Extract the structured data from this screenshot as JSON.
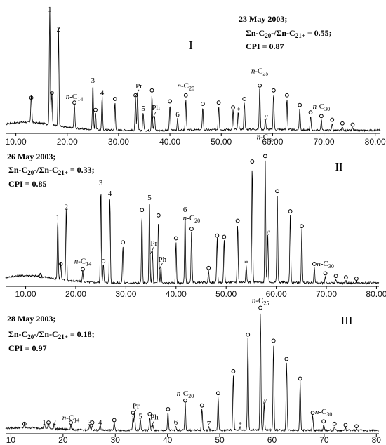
{
  "chart_data": [
    {
      "type": "line",
      "panel_label": "I",
      "date": "23 May 2003;",
      "ratio_prefix": "Σn-C",
      "ratio_sub1": "20",
      "ratio_mid": "-/Σn-C",
      "ratio_sub2": "21+",
      "ratio_value": " = 0.55;",
      "cpi": "CPI = 0.87",
      "xlim": [
        8,
        81
      ],
      "xticks": [
        10,
        20,
        30,
        40,
        50,
        60,
        70,
        80
      ],
      "xtick_labels": [
        "10.00",
        "20.00",
        "30.00",
        "40.00",
        "50.00",
        "60.00",
        "70.00",
        "80.00"
      ],
      "ymax": 100,
      "baseline_drift": 6,
      "peaks": [
        {
          "x": 13.0,
          "h": 24,
          "m": "o"
        },
        {
          "x": 16.6,
          "h": 96,
          "lbl": "1"
        },
        {
          "x": 17.0,
          "h": 28,
          "m": "o"
        },
        {
          "x": 18.3,
          "h": 80,
          "lbl": "2"
        },
        {
          "x": 21.4,
          "h": 20,
          "m": "o"
        },
        {
          "x": 25.0,
          "h": 38,
          "lbl": "3"
        },
        {
          "x": 25.5,
          "h": 14,
          "m": "o"
        },
        {
          "x": 26.8,
          "h": 28,
          "lbl": "4"
        },
        {
          "x": 29.3,
          "h": 23,
          "m": "o"
        },
        {
          "x": 33.3,
          "h": 26,
          "m": "o"
        },
        {
          "x": 33.7,
          "h": 30,
          "lbl": "Pr"
        },
        {
          "x": 34.8,
          "h": 15,
          "lbl": "5"
        },
        {
          "x": 36.5,
          "h": 30,
          "m": "o"
        },
        {
          "x": 37.0,
          "h": 12,
          "lbl": "Ph"
        },
        {
          "x": 40.0,
          "h": 21,
          "m": "o"
        },
        {
          "x": 41.5,
          "h": 10,
          "lbl": "6"
        },
        {
          "x": 43.1,
          "h": 26,
          "m": "o"
        },
        {
          "x": 46.4,
          "h": 19,
          "m": "o"
        },
        {
          "x": 49.5,
          "h": 20,
          "m": "o"
        },
        {
          "x": 52.3,
          "h": 16,
          "m": "o"
        },
        {
          "x": 53.3,
          "h": 14,
          "m": "*"
        },
        {
          "x": 54.5,
          "h": 23,
          "m": "o"
        },
        {
          "x": 57.5,
          "h": 34,
          "m": "o"
        },
        {
          "x": 58.6,
          "h": 9,
          "m": "//"
        },
        {
          "x": 60.2,
          "h": 30,
          "m": "o"
        },
        {
          "x": 62.8,
          "h": 26,
          "m": "o"
        },
        {
          "x": 65.3,
          "h": 18,
          "m": "o"
        },
        {
          "x": 67.4,
          "h": 12,
          "m": "o"
        },
        {
          "x": 69.5,
          "h": 9,
          "m": "o"
        },
        {
          "x": 71.6,
          "h": 6,
          "m": "o"
        },
        {
          "x": 73.6,
          "h": 3,
          "m": "o"
        },
        {
          "x": 75.6,
          "h": 2,
          "m": "o"
        }
      ],
      "annotations": [
        {
          "text": "n-C",
          "sub": "14",
          "x": 21.4,
          "h": 27
        },
        {
          "text": "n-C",
          "sub": "20",
          "x": 43.1,
          "h": 36
        },
        {
          "text": "n-C",
          "sub": "25",
          "x": 57.5,
          "h": 48
        },
        {
          "text": "n-C",
          "sub": "30",
          "x": 69.5,
          "h": 19
        }
      ]
    },
    {
      "type": "line",
      "panel_label": "II",
      "date": "26 May 2003;",
      "ratio_prefix": "Σn-C",
      "ratio_sub1": "20",
      "ratio_mid": "-/Σn-C",
      "ratio_sub2": "21+",
      "ratio_value": " = 0.33;",
      "cpi": "CPI = 0.85",
      "xlim": [
        6,
        80.5
      ],
      "xticks": [
        10,
        20,
        30,
        40,
        50,
        60,
        70,
        80
      ],
      "xtick_labels": [
        "10.00",
        "20.00",
        "30.00",
        "40.00",
        "50.00",
        "60.00",
        "70.00",
        "80.00"
      ],
      "ymax": 100,
      "baseline_drift": 5,
      "peaks": [
        {
          "x": 12.9,
          "h": 3,
          "m": "o"
        },
        {
          "x": 16.4,
          "h": 46,
          "lbl": "1"
        },
        {
          "x": 17.0,
          "h": 12,
          "m": "o"
        },
        {
          "x": 18.1,
          "h": 54,
          "lbl": "2"
        },
        {
          "x": 21.4,
          "h": 8,
          "m": "o"
        },
        {
          "x": 25.0,
          "h": 72,
          "lbl": "3"
        },
        {
          "x": 25.5,
          "h": 14,
          "m": "o"
        },
        {
          "x": 26.8,
          "h": 64,
          "lbl": "4"
        },
        {
          "x": 29.4,
          "h": 28,
          "m": "o"
        },
        {
          "x": 33.2,
          "h": 52,
          "m": "o"
        },
        {
          "x": 34.7,
          "h": 61,
          "lbl": "5"
        },
        {
          "x": 35.3,
          "h": 24,
          "lbl": "Pr"
        },
        {
          "x": 36.5,
          "h": 48,
          "m": "o"
        },
        {
          "x": 37.0,
          "h": 12,
          "lbl": "Ph"
        },
        {
          "x": 40.0,
          "h": 31,
          "m": "o"
        },
        {
          "x": 41.8,
          "h": 52,
          "lbl": "6"
        },
        {
          "x": 43.1,
          "h": 38,
          "m": "o"
        },
        {
          "x": 46.5,
          "h": 9,
          "m": "o"
        },
        {
          "x": 48.2,
          "h": 33,
          "m": "o"
        },
        {
          "x": 49.6,
          "h": 32,
          "m": "o"
        },
        {
          "x": 52.3,
          "h": 44,
          "m": "o"
        },
        {
          "x": 54.0,
          "h": 13,
          "m": "*"
        },
        {
          "x": 55.2,
          "h": 88,
          "m": "o"
        },
        {
          "x": 57.8,
          "h": 92,
          "m": "o"
        },
        {
          "x": 58.3,
          "h": 36,
          "m": "//"
        },
        {
          "x": 60.2,
          "h": 66,
          "m": "o"
        },
        {
          "x": 62.8,
          "h": 51,
          "m": "o"
        },
        {
          "x": 65.1,
          "h": 40,
          "m": "o"
        },
        {
          "x": 67.6,
          "h": 12,
          "m": "o"
        },
        {
          "x": 69.8,
          "h": 5,
          "m": "o"
        },
        {
          "x": 71.9,
          "h": 3,
          "m": "o"
        },
        {
          "x": 73.9,
          "h": 2,
          "m": "o"
        },
        {
          "x": 76.0,
          "h": 1,
          "m": "o"
        }
      ],
      "annotations": [
        {
          "text": "n-C",
          "sub": "14",
          "x": 21.4,
          "h": 16
        },
        {
          "text": "n-C",
          "sub": "20",
          "x": 43.1,
          "h": 48
        },
        {
          "text": "n-C",
          "sub": "25",
          "x": 57.8,
          "h": 108
        },
        {
          "text": "n-C",
          "sub": "30",
          "x": 69.8,
          "h": 14
        }
      ]
    },
    {
      "type": "line",
      "panel_label": "III",
      "date": "28 May 2003;",
      "ratio_prefix": "Σn-C",
      "ratio_sub1": "20",
      "ratio_mid": "-/Σn-C",
      "ratio_sub2": "21+",
      "ratio_value": " = 0.18;",
      "cpi": "CPI = 0.97",
      "xlim": [
        9,
        80.5
      ],
      "xticks": [
        10,
        20,
        30,
        40,
        50,
        60,
        70,
        80
      ],
      "xtick_labels": [
        "10",
        "20",
        "30",
        "40",
        "50",
        "60",
        "70",
        "80"
      ],
      "ymax": 100,
      "baseline_drift": 2,
      "peaks": [
        {
          "x": 12.6,
          "h": 3,
          "m": "o"
        },
        {
          "x": 16.4,
          "h": 4,
          "lbl": "1"
        },
        {
          "x": 17.2,
          "h": 4,
          "m": "o"
        },
        {
          "x": 18.3,
          "h": 4,
          "lbl": "2"
        },
        {
          "x": 21.5,
          "h": 4,
          "m": "o"
        },
        {
          "x": 25.1,
          "h": 4,
          "lbl": "3"
        },
        {
          "x": 25.6,
          "h": 4,
          "m": "o"
        },
        {
          "x": 27.1,
          "h": 4,
          "lbl": "4"
        },
        {
          "x": 29.8,
          "h": 6,
          "m": "o"
        },
        {
          "x": 33.4,
          "h": 12,
          "m": "o"
        },
        {
          "x": 33.7,
          "h": 14,
          "lbl": "Pr"
        },
        {
          "x": 34.8,
          "h": 9,
          "lbl": "5"
        },
        {
          "x": 36.6,
          "h": 11,
          "m": "o"
        },
        {
          "x": 37.2,
          "h": 5,
          "lbl": "Ph"
        },
        {
          "x": 40.1,
          "h": 15,
          "m": "o"
        },
        {
          "x": 41.6,
          "h": 4,
          "lbl": "6"
        },
        {
          "x": 43.4,
          "h": 22,
          "m": "o"
        },
        {
          "x": 46.6,
          "h": 18,
          "m": "o"
        },
        {
          "x": 47.9,
          "h": 3,
          "lbl": "7"
        },
        {
          "x": 49.7,
          "h": 28,
          "m": "o"
        },
        {
          "x": 52.6,
          "h": 46,
          "m": "o"
        },
        {
          "x": 53.9,
          "h": 3,
          "m": "*"
        },
        {
          "x": 55.4,
          "h": 76,
          "m": "o"
        },
        {
          "x": 57.8,
          "h": 98,
          "m": "o"
        },
        {
          "x": 58.5,
          "h": 22,
          "m": "//"
        },
        {
          "x": 60.3,
          "h": 71,
          "m": "o"
        },
        {
          "x": 62.8,
          "h": 56,
          "m": "o"
        },
        {
          "x": 65.4,
          "h": 40,
          "m": "o"
        },
        {
          "x": 67.8,
          "h": 12,
          "m": "o"
        },
        {
          "x": 69.9,
          "h": 5,
          "m": "o"
        },
        {
          "x": 72.0,
          "h": 3,
          "m": "o"
        },
        {
          "x": 74.1,
          "h": 2,
          "m": "o"
        },
        {
          "x": 76.2,
          "h": 1,
          "m": "o"
        }
      ],
      "annotations": [
        {
          "text": "n-C",
          "sub": "14",
          "x": 21.5,
          "h": 10
        },
        {
          "text": "n-C",
          "sub": "20",
          "x": 43.4,
          "h": 30
        },
        {
          "text": "n-C",
          "sub": "25",
          "x": 57.8,
          "h": 106
        },
        {
          "text": "n-C",
          "sub": "30",
          "x": 69.9,
          "h": 15
        }
      ]
    }
  ]
}
